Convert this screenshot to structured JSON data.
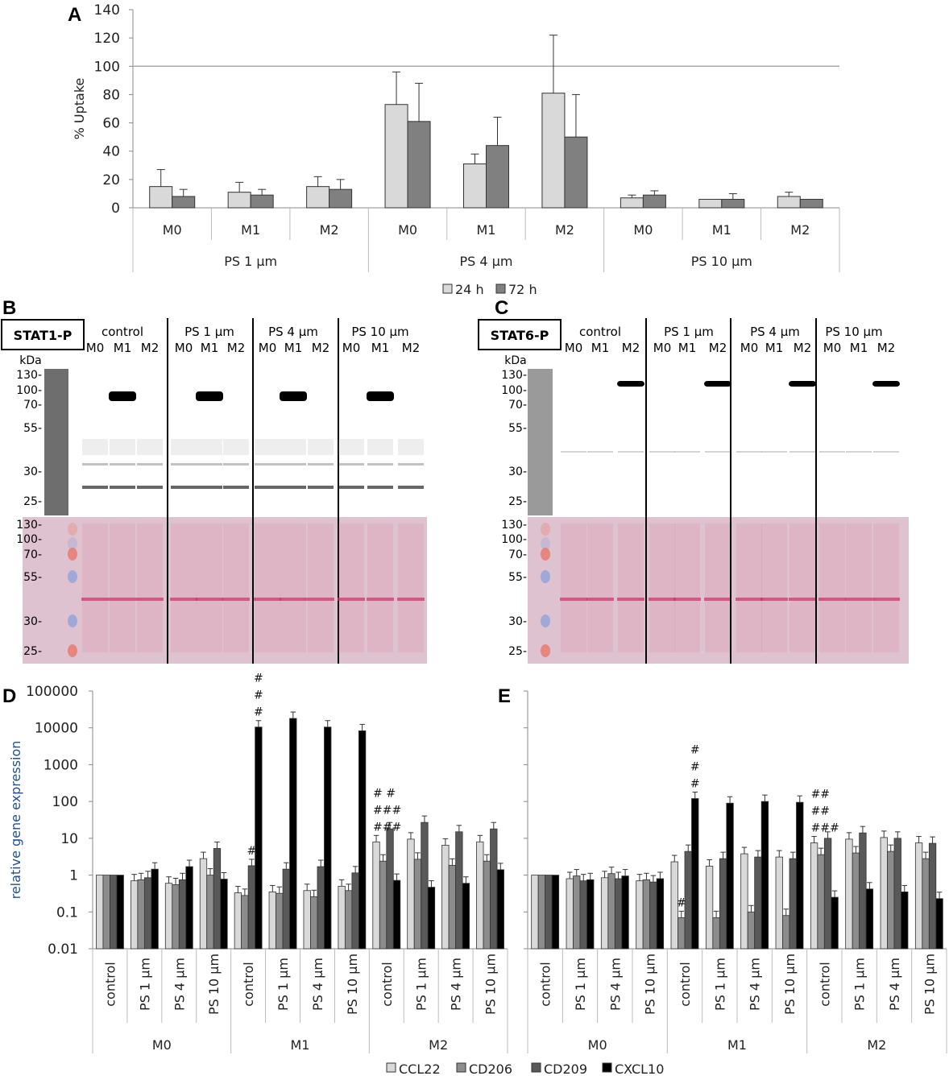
{
  "panels": {
    "A": "A",
    "B": "B",
    "C": "C",
    "D": "D",
    "E": "E"
  },
  "colors": {
    "24h": "#d9d9d9",
    "72h": "#808080",
    "CCL22": "#d9d9d9",
    "CD206": "#8c8c8c",
    "CD209": "#595959",
    "CXCL10": "#000000",
    "ponceau": "#e8b4c4",
    "blot_bg": "#ffffff",
    "ladder": "#6e6e6e"
  },
  "chart_data": [
    {
      "id": "A",
      "type": "bar",
      "ylabel": "% Uptake",
      "ylim": [
        0,
        140
      ],
      "yticks": [
        "0",
        "20",
        "40",
        "60",
        "80",
        "100",
        "120",
        "140"
      ],
      "reference_line": 100,
      "groups": [
        "PS 1 µm",
        "PS 4 µm",
        "PS 10 µm"
      ],
      "categories": [
        "M0",
        "M1",
        "M2",
        "M0",
        "M1",
        "M2",
        "M0",
        "M1",
        "M2"
      ],
      "series": [
        {
          "name": "24 h",
          "values": [
            15,
            11,
            15,
            73,
            31,
            81,
            7,
            6,
            8
          ],
          "errors": [
            12,
            7,
            7,
            23,
            7,
            41,
            2,
            0,
            3
          ]
        },
        {
          "name": "72 h",
          "values": [
            8,
            9,
            13,
            61,
            44,
            50,
            9,
            6,
            6
          ],
          "errors": [
            5,
            4,
            7,
            27,
            20,
            30,
            3,
            4,
            0
          ]
        }
      ],
      "legend": "bottom"
    },
    {
      "id": "D",
      "type": "bar",
      "ylabel": "relative gene expression",
      "yscale": "log",
      "ylim": [
        0.01,
        100000
      ],
      "yticks": [
        "0.01",
        "0.1",
        "1",
        "10",
        "100",
        "1000",
        "10000",
        "100000"
      ],
      "groups": [
        "M0",
        "M1",
        "M2"
      ],
      "categories": [
        "control",
        "PS 1 µm",
        "PS 4 µm",
        "PS 10 µm",
        "control",
        "PS 1 µm",
        "PS 4 µm",
        "PS 10 µm",
        "control",
        "PS 1 µm",
        "PS 4 µm",
        "PS 10 µm"
      ],
      "series": [
        {
          "name": "CCL22",
          "values": [
            1,
            0.7,
            0.6,
            2.8,
            0.33,
            0.35,
            0.38,
            0.5,
            8,
            9.5,
            6.5,
            8
          ]
        },
        {
          "name": "CD206",
          "values": [
            1,
            0.75,
            0.55,
            1.0,
            0.28,
            0.32,
            0.26,
            0.38,
            2.4,
            2.7,
            1.85,
            2.4
          ]
        },
        {
          "name": "CD209",
          "values": [
            1,
            0.85,
            0.75,
            5.3,
            1.8,
            1.45,
            1.7,
            1.15,
            18,
            27,
            15,
            18
          ]
        },
        {
          "name": "CXCL10",
          "values": [
            1,
            1.45,
            1.7,
            0.78,
            10500,
            18000,
            10500,
            8300,
            0.72,
            0.47,
            0.6,
            1.4
          ]
        }
      ],
      "annotations": [
        {
          "category": 4,
          "series": "CD209",
          "text": "#"
        },
        {
          "category": 4,
          "series": "CXCL10",
          "text": "#\n#\n#"
        },
        {
          "category": 8,
          "series": "CCL22",
          "text": "# #\n###\n###"
        }
      ],
      "legend": "bottom"
    },
    {
      "id": "E",
      "type": "bar",
      "yscale": "log",
      "ylim": [
        0.01,
        100000
      ],
      "groups": [
        "M0",
        "M1",
        "M2"
      ],
      "categories": [
        "control",
        "PS 1 µm",
        "PS 4 µm",
        "PS 10 µm",
        "control",
        "PS 1 µm",
        "PS 4 µm",
        "PS 10 µm",
        "control",
        "PS 1 µm",
        "PS 4 µm",
        "PS 10 µm"
      ],
      "series": [
        {
          "name": "CCL22",
          "values": [
            1,
            0.8,
            0.85,
            0.7,
            2.3,
            1.75,
            3.8,
            3.1,
            7.5,
            9.5,
            10.5,
            7.5
          ]
        },
        {
          "name": "CD206",
          "values": [
            1,
            0.95,
            1.1,
            0.75,
            0.07,
            0.07,
            0.1,
            0.08,
            3.6,
            4,
            4.4,
            2.8
          ]
        },
        {
          "name": "CD209",
          "values": [
            1,
            0.7,
            0.8,
            0.65,
            4.4,
            2.8,
            3.1,
            2.8,
            10,
            14,
            10,
            7.3
          ]
        },
        {
          "name": "CXCL10",
          "values": [
            1,
            0.75,
            0.95,
            0.8,
            120,
            90,
            100,
            95,
            0.25,
            0.42,
            0.35,
            0.23
          ]
        }
      ],
      "annotations": [
        {
          "category": 4,
          "series": "CD206",
          "text": "#"
        },
        {
          "category": 4,
          "series": "CXCL10",
          "text": "#\n#\n#"
        },
        {
          "category": 8,
          "series": "CCL22",
          "text": "##\n##\n###"
        }
      ],
      "legend": "bottom"
    }
  ],
  "blots": [
    {
      "id": "B",
      "antibody": "STAT1-P",
      "groups": [
        "control",
        "PS 1 µm",
        "PS 4 µm",
        "PS 10 µm"
      ],
      "lanes": [
        "M0",
        "M1",
        "M2"
      ],
      "unit": "kDa",
      "markers": [
        "130",
        "100",
        "70",
        "55",
        "30",
        "25"
      ],
      "strong_band_lane": "M1"
    },
    {
      "id": "C",
      "antibody": "STAT6-P",
      "groups": [
        "control",
        "PS 1 µm",
        "PS 4 µm",
        "PS 10 µm"
      ],
      "lanes": [
        "M0",
        "M1",
        "M2"
      ],
      "unit": "kDa",
      "markers": [
        "130",
        "100",
        "70",
        "55",
        "30",
        "25"
      ],
      "strong_band_lane": "M2"
    }
  ]
}
